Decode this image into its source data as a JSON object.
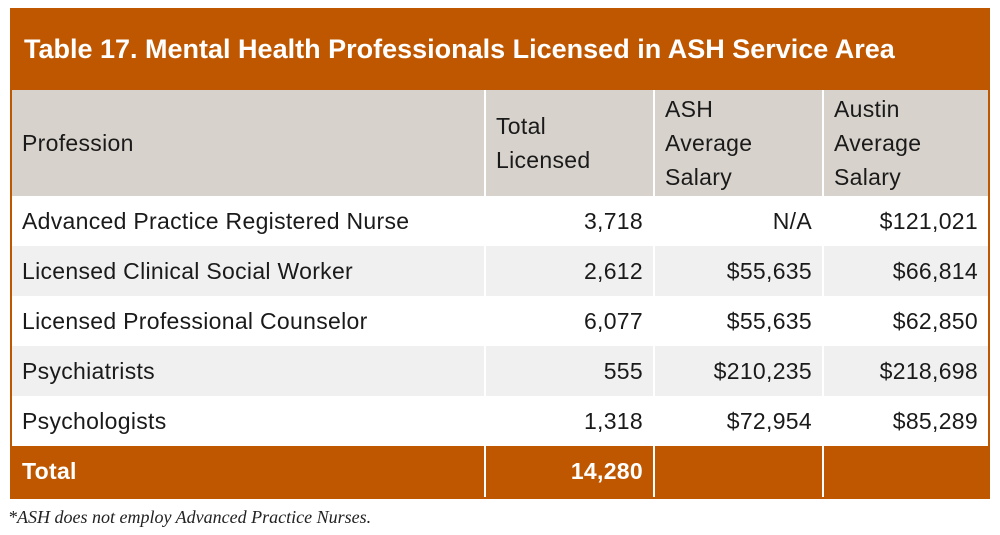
{
  "title": "Table 17. Mental Health Professionals Licensed in ASH Service Area",
  "columns": [
    "Profession",
    "Total\nLicensed",
    "ASH\nAverage\nSalary",
    "Austin\nAverage\nSalary"
  ],
  "rows": [
    [
      "Advanced Practice Registered Nurse",
      "3,718",
      "N/A",
      "$121,021"
    ],
    [
      "Licensed Clinical Social Worker",
      "2,612",
      "$55,635",
      "$66,814"
    ],
    [
      "Licensed Professional Counselor",
      "6,077",
      "$55,635",
      "$62,850"
    ],
    [
      "Psychiatrists",
      "555",
      "$210,235",
      "$218,698"
    ],
    [
      "Psychologists",
      "1,318",
      "$72,954",
      "$85,289"
    ]
  ],
  "total": [
    "Total",
    "14,280",
    "",
    ""
  ],
  "footnote": "*ASH does not employ Advanced Practice Nurses.",
  "colors": {
    "accent": "#bf5700",
    "header_bg": "#d7d2cb",
    "row_alt": "#f0f0f0"
  }
}
